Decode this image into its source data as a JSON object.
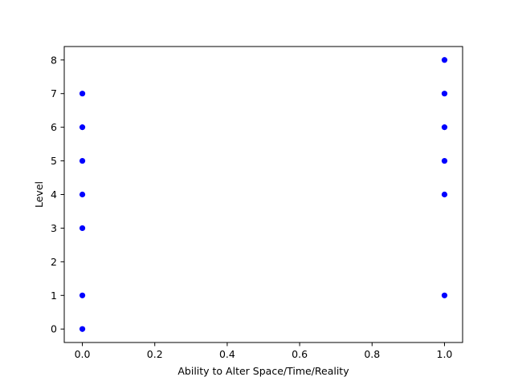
{
  "chart_data": {
    "type": "scatter",
    "xlabel": "Ability to Alter Space/Time/Reality",
    "ylabel": "Level",
    "xlim": [
      -0.05,
      1.05
    ],
    "ylim": [
      -0.4,
      8.4
    ],
    "xticks": [
      "0.0",
      "0.2",
      "0.4",
      "0.6",
      "0.8",
      "1.0"
    ],
    "yticks": [
      "0",
      "1",
      "2",
      "3",
      "4",
      "5",
      "6",
      "7",
      "8"
    ],
    "grid": false,
    "marker_color": "#0000ff",
    "series": [
      {
        "x": [
          0,
          0,
          0,
          0,
          0,
          0,
          0,
          1,
          1,
          1,
          1,
          1,
          1
        ],
        "y": [
          0,
          1,
          3,
          4,
          5,
          6,
          7,
          1,
          4,
          5,
          6,
          7,
          8
        ]
      }
    ]
  }
}
